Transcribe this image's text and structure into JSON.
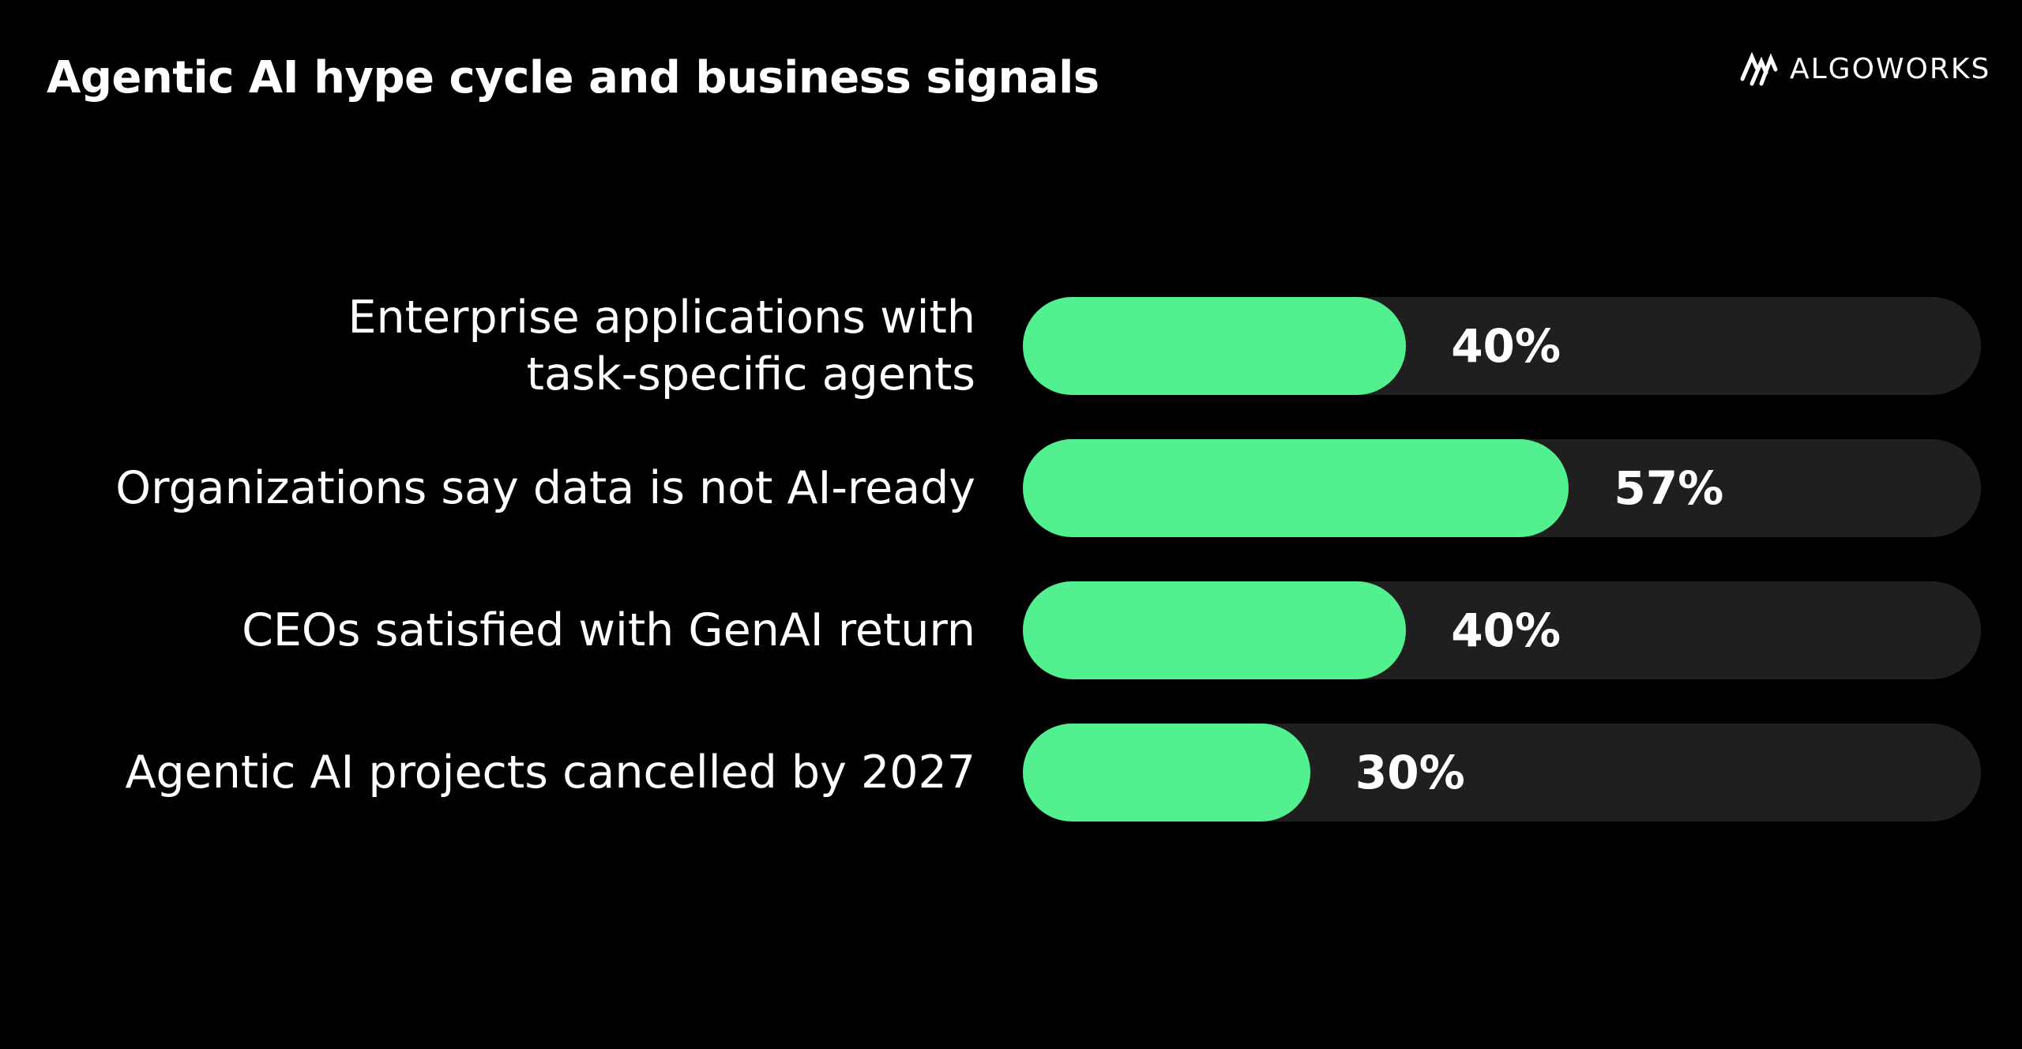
{
  "chart_data": {
    "type": "bar",
    "orientation": "horizontal",
    "title": "Agentic AI hype cycle and business signals",
    "brand": "ALGOWORKS",
    "categories": [
      "Enterprise applications with\ntask-specific agents",
      "Organizations say data is not AI-ready",
      "CEOs satisfied with GenAI return",
      "Agentic AI projects cancelled by 2027"
    ],
    "values": [
      40,
      57,
      40,
      30
    ],
    "value_labels": [
      "40%",
      "57%",
      "40%",
      "30%"
    ],
    "xlim": [
      0,
      100
    ],
    "color": "#52f08f",
    "track_color": "#1f1f1f"
  }
}
